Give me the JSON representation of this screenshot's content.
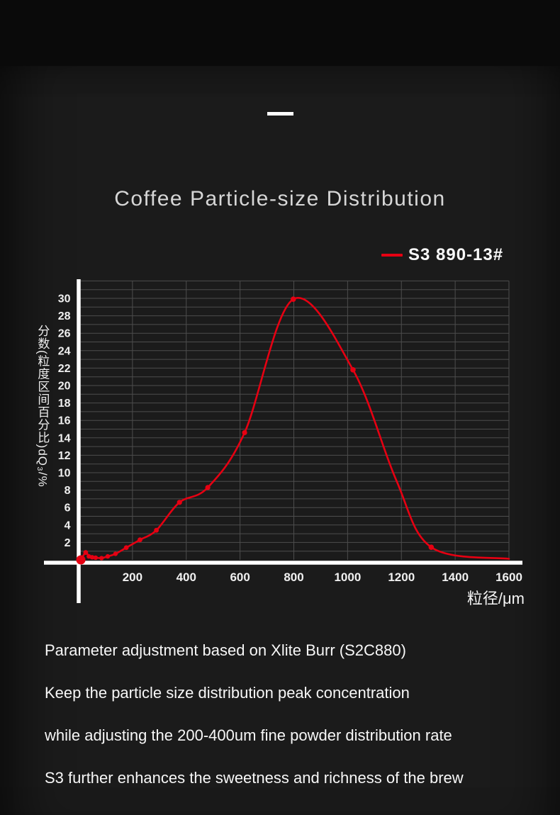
{
  "header": {
    "title": "Coffee Particle-size Distribution"
  },
  "legend": {
    "series_label": "S3 890-13#",
    "line_color": "#e60012"
  },
  "chart_data": {
    "type": "line",
    "title": "Coffee Particle-size Distribution",
    "xlabel": "粒径/μm",
    "ylabel": "分数(粒度区间百分比)dQ₃/%",
    "xlim": [
      0,
      1600
    ],
    "ylim": [
      0,
      32
    ],
    "x_ticks": [
      200,
      400,
      600,
      800,
      1000,
      1200,
      1400,
      1600
    ],
    "y_ticks": [
      2,
      4,
      6,
      8,
      10,
      12,
      14,
      16,
      18,
      20,
      22,
      24,
      26,
      28,
      30
    ],
    "grid": {
      "enabled": true,
      "x_step": 200,
      "y_step": 1
    },
    "legend_position": "top-right",
    "series": [
      {
        "name": "S3 890-13#",
        "color": "#e60012",
        "points_xy_r": [
          [
            8,
            0.0,
            6.5
          ],
          [
            26,
            0.85,
            3.4
          ],
          [
            38,
            0.4,
            3.2
          ],
          [
            50,
            0.3,
            3.2
          ],
          [
            63,
            0.25,
            3.2
          ],
          [
            85,
            0.2,
            3.2
          ],
          [
            108,
            0.4,
            3.2
          ],
          [
            137,
            0.7,
            3.2
          ],
          [
            177,
            1.4,
            3.4
          ],
          [
            228,
            2.3,
            3.4
          ],
          [
            289,
            3.4,
            3.4
          ],
          [
            375,
            6.6,
            3.6
          ],
          [
            480,
            8.3,
            3.6
          ],
          [
            617,
            14.6,
            3.6
          ],
          [
            798,
            29.9,
            3.8
          ],
          [
            1020,
            21.8,
            3.8
          ],
          [
            1180,
            9.2,
            0
          ],
          [
            1311,
            1.45,
            3.8
          ],
          [
            1600,
            0.12,
            0
          ]
        ]
      }
    ]
  },
  "description": {
    "lines": [
      "Parameter adjustment based on Xlite Burr (S2C880)",
      "Keep the particle size distribution peak concentration",
      "while adjusting the 200-400um fine powder distribution rate",
      "S3 further enhances the sweetness and richness of the brew"
    ]
  },
  "colors": {
    "page_background": "#0a0a0a",
    "panel_background": "#1b1b1b",
    "grid_line": "#4d4d4d",
    "axis_line": "#ffffff",
    "series_red": "#e60012",
    "title_text": "#d6d6d6",
    "tick_text": "#f0f0f0",
    "body_text": "#f7f7f7"
  }
}
